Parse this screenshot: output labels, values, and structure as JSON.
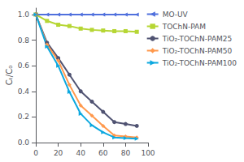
{
  "chart_data": {
    "type": "line",
    "y_label": "Cₜ/C₀",
    "x": [
      0,
      10,
      20,
      30,
      40,
      50,
      60,
      70,
      80,
      90
    ],
    "series": [
      {
        "name": "MO-UV",
        "marker": "triangle_left",
        "values": [
          1.0,
          1.0,
          1.0,
          1.0,
          1.0,
          1.0,
          1.0,
          1.0,
          1.0,
          1.0
        ]
      },
      {
        "name": "TOChN-PAM",
        "marker": "square",
        "values": [
          1.0,
          0.95,
          0.92,
          0.91,
          0.89,
          0.88,
          0.875,
          0.87,
          0.87,
          0.865
        ]
      },
      {
        "name": "TiO₂-TOChN-PAM25",
        "marker": "circle",
        "values": [
          1.0,
          0.78,
          0.66,
          0.53,
          0.4,
          0.32,
          0.24,
          0.16,
          0.145,
          0.13
        ]
      },
      {
        "name": "TiO₂-TOChN-PAM50",
        "marker": "diamond",
        "values": [
          1.0,
          0.765,
          0.64,
          0.45,
          0.29,
          0.21,
          0.13,
          0.055,
          0.048,
          0.04
        ]
      },
      {
        "name": "TiO₂-TOChN-PAM100",
        "marker": "triangle_right",
        "values": [
          1.0,
          0.75,
          0.6,
          0.395,
          0.225,
          0.135,
          0.08,
          0.04,
          0.035,
          0.03
        ]
      }
    ],
    "xlim": [
      0,
      100
    ],
    "xticks": [
      0,
      20,
      40,
      60,
      80,
      100
    ],
    "ylim": [
      0.0,
      1.05
    ],
    "yticks": [
      {
        "value": 0,
        "label": "0.0"
      },
      0.2,
      0.4,
      0.6,
      0.8,
      {
        "value": 1,
        "label": "1.0"
      }
    ],
    "grid": false,
    "legend": "upper right"
  }
}
